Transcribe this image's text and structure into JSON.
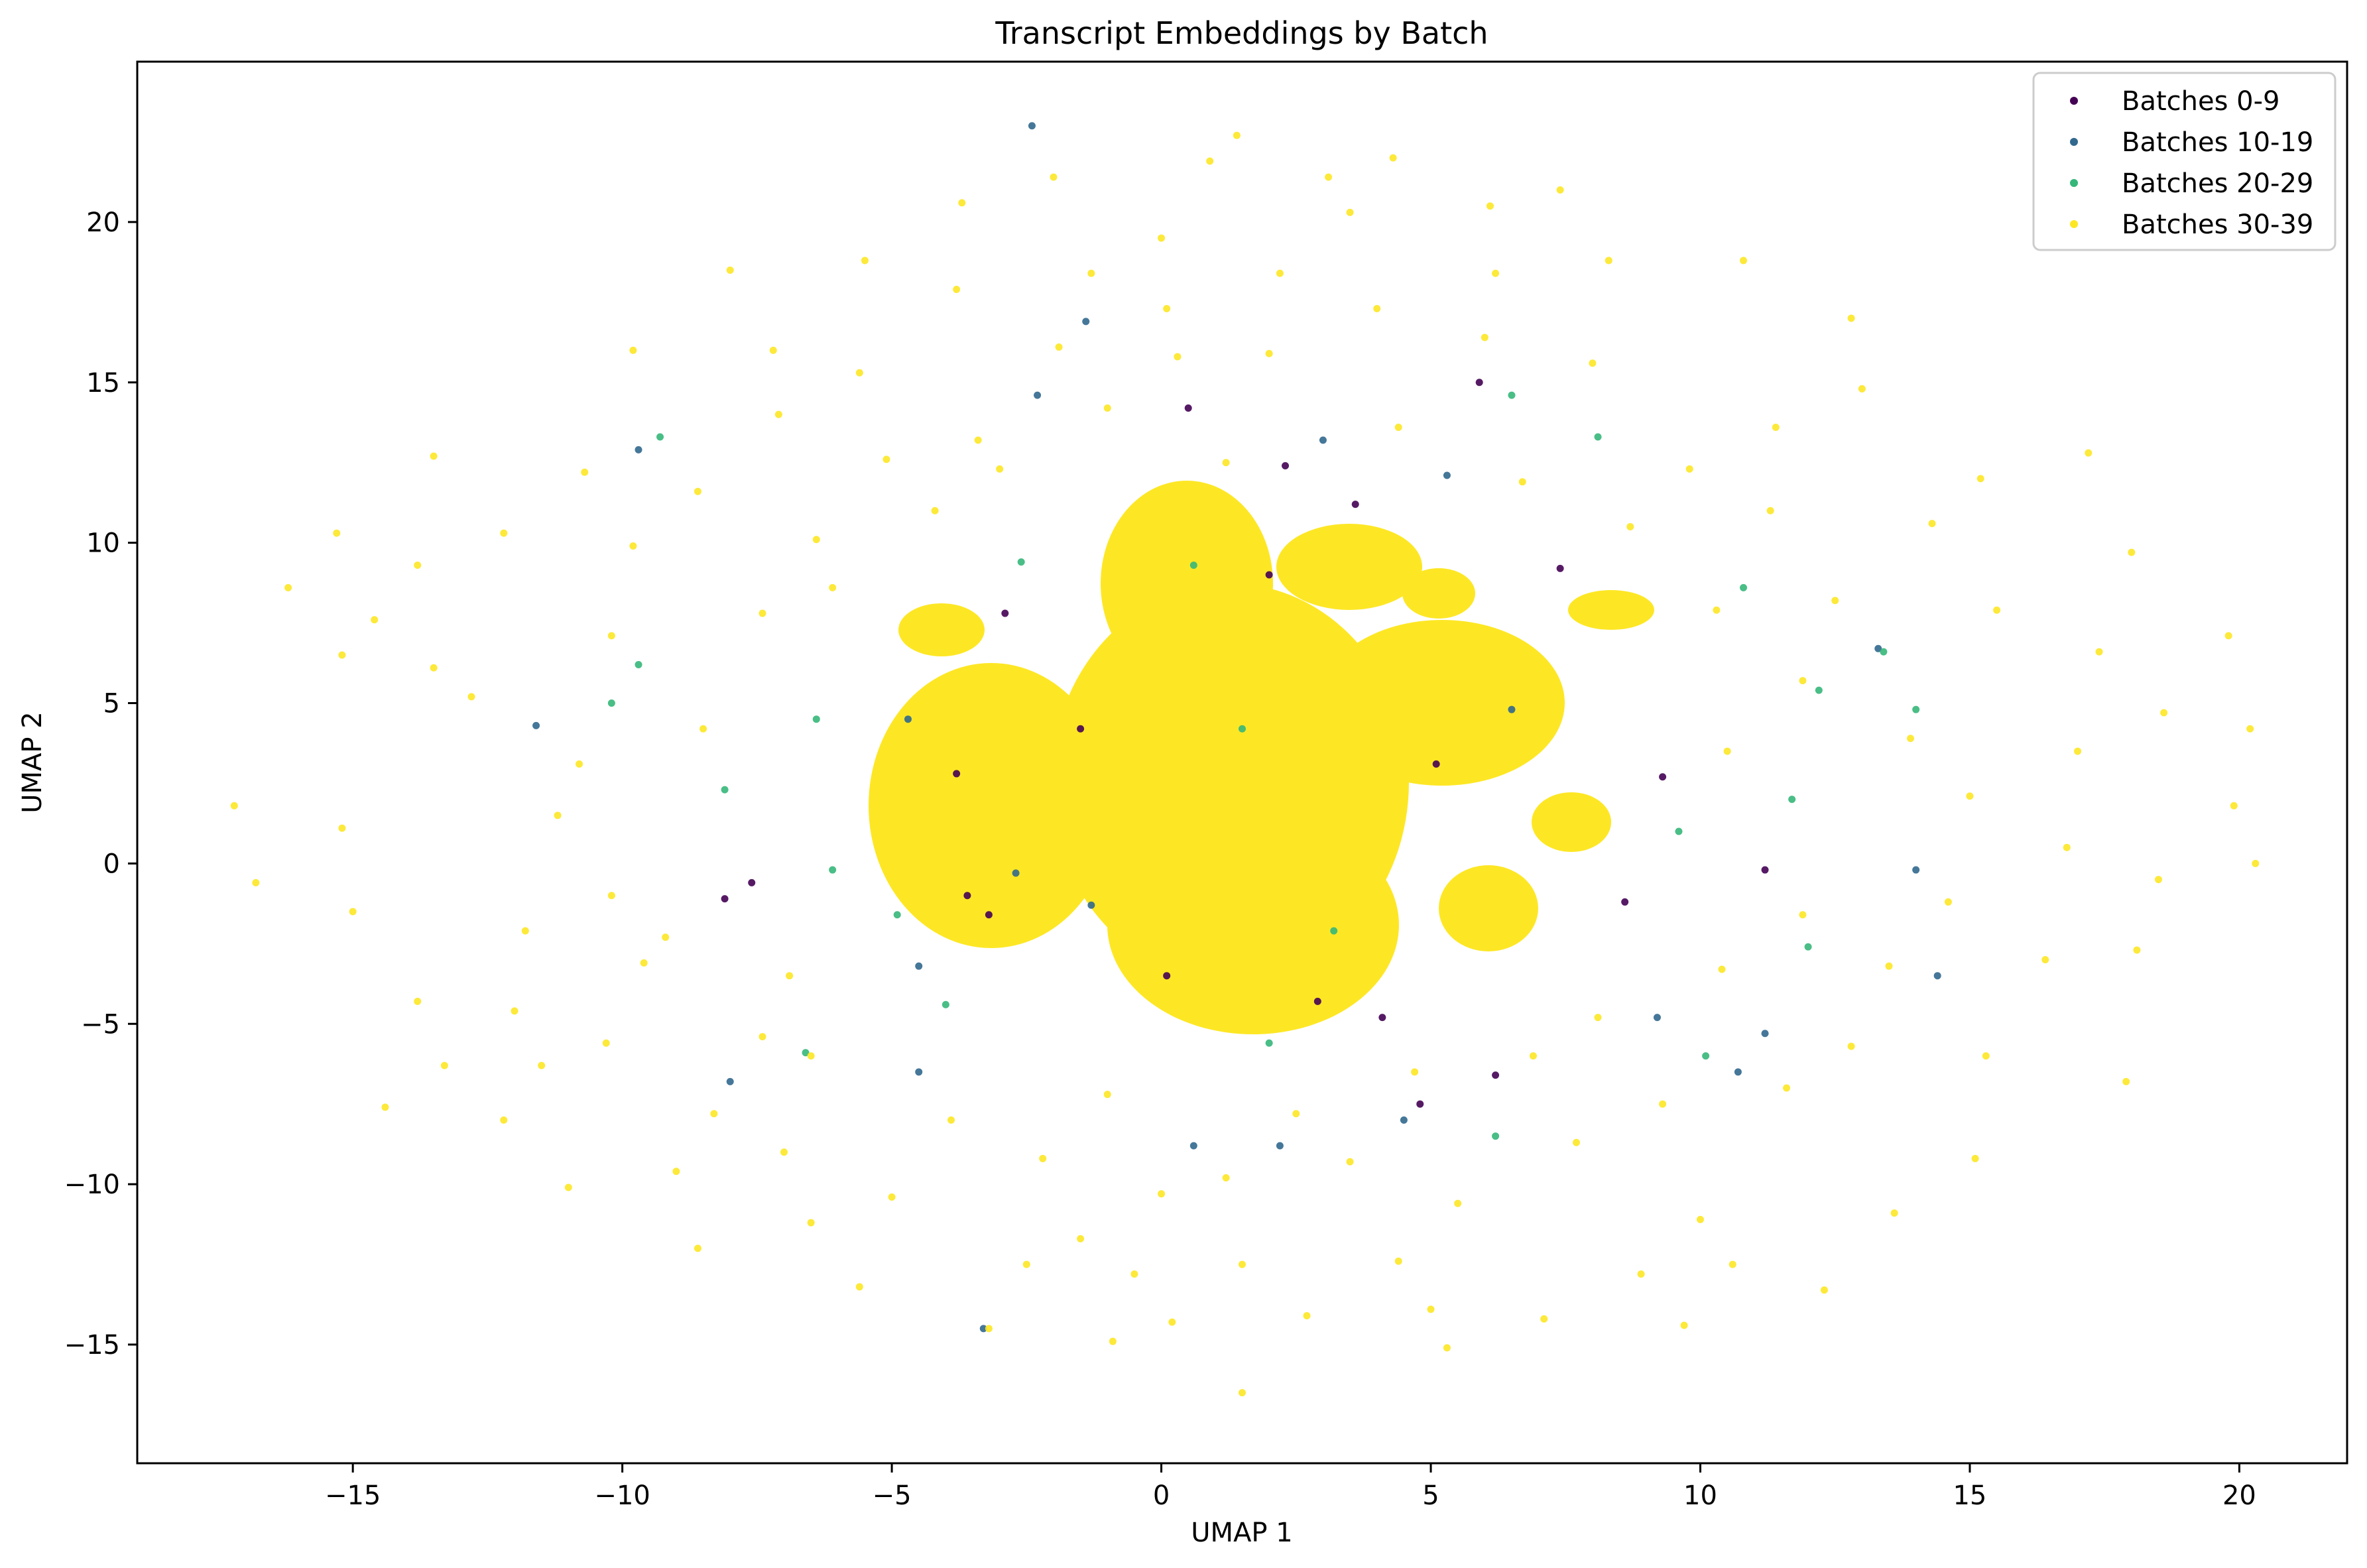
{
  "chart_data": {
    "type": "scatter",
    "title": "Transcript Embeddings by Batch",
    "xlabel": "UMAP 1",
    "ylabel": "UMAP 2",
    "xlim": [
      -19,
      22
    ],
    "ylim": [
      -18.7,
      25
    ],
    "xticks": [
      -15,
      -10,
      -5,
      0,
      5,
      10,
      15,
      20
    ],
    "yticks": [
      -15,
      -10,
      -5,
      0,
      5,
      10,
      15,
      20
    ],
    "xtick_labels": [
      "−15",
      "−10",
      "−5",
      "0",
      "5",
      "10",
      "15",
      "20"
    ],
    "ytick_labels": [
      "−15",
      "−10",
      "−5",
      "0",
      "5",
      "10",
      "15",
      "20"
    ],
    "grid": false,
    "legend_position": "top-right",
    "series": [
      {
        "name": "Batches 0-9",
        "color": "#440154",
        "points": [
          [
            0.5,
            14.2
          ],
          [
            5.9,
            15.0
          ],
          [
            2.3,
            12.4
          ],
          [
            3.6,
            11.2
          ],
          [
            -2.9,
            7.8
          ],
          [
            -3.8,
            2.8
          ],
          [
            -3.2,
            -1.6
          ],
          [
            0.1,
            -3.5
          ],
          [
            2.9,
            -4.3
          ],
          [
            4.1,
            -4.8
          ],
          [
            6.2,
            -6.6
          ],
          [
            8.6,
            -1.2
          ],
          [
            9.3,
            2.7
          ],
          [
            11.2,
            -0.2
          ],
          [
            -7.6,
            -0.6
          ],
          [
            -3.6,
            -1.0
          ],
          [
            -8.1,
            -1.1
          ],
          [
            4.8,
            -7.5
          ],
          [
            -1.5,
            4.2
          ],
          [
            2.0,
            9.0
          ],
          [
            7.4,
            9.2
          ],
          [
            5.1,
            3.1
          ]
        ]
      },
      {
        "name": "Batches 10-19",
        "color": "#31688e",
        "points": [
          [
            -2.4,
            23.0
          ],
          [
            -1.4,
            16.9
          ],
          [
            -2.3,
            14.6
          ],
          [
            3.0,
            13.2
          ],
          [
            5.3,
            12.1
          ],
          [
            -9.7,
            12.9
          ],
          [
            -11.6,
            4.3
          ],
          [
            -4.7,
            4.5
          ],
          [
            -1.3,
            -1.3
          ],
          [
            -4.5,
            -3.2
          ],
          [
            -4.5,
            -6.5
          ],
          [
            0.6,
            -8.8
          ],
          [
            2.2,
            -8.8
          ],
          [
            10.7,
            -6.5
          ],
          [
            11.2,
            -5.3
          ],
          [
            13.3,
            6.7
          ],
          [
            14.4,
            -3.5
          ],
          [
            14.0,
            -0.2
          ],
          [
            -8.0,
            -6.8
          ],
          [
            -3.3,
            -14.5
          ],
          [
            4.5,
            -8.0
          ],
          [
            9.2,
            -4.8
          ],
          [
            6.5,
            4.8
          ],
          [
            -2.7,
            -0.3
          ]
        ]
      },
      {
        "name": "Batches 20-29",
        "color": "#35b779",
        "points": [
          [
            -9.3,
            13.3
          ],
          [
            -9.7,
            6.2
          ],
          [
            -10.2,
            5.0
          ],
          [
            -8.1,
            2.3
          ],
          [
            -6.1,
            -0.2
          ],
          [
            -4.9,
            -1.6
          ],
          [
            -6.6,
            -5.9
          ],
          [
            2.0,
            -5.6
          ],
          [
            6.2,
            -8.5
          ],
          [
            10.1,
            -6.0
          ],
          [
            10.8,
            8.6
          ],
          [
            11.7,
            2.0
          ],
          [
            12.0,
            -2.6
          ],
          [
            13.4,
            6.6
          ],
          [
            14.0,
            4.8
          ],
          [
            -2.6,
            9.4
          ],
          [
            6.5,
            14.6
          ],
          [
            8.1,
            13.3
          ],
          [
            0.6,
            9.3
          ],
          [
            1.5,
            4.2
          ],
          [
            3.2,
            -2.1
          ],
          [
            -6.4,
            4.5
          ],
          [
            -4.0,
            -4.4
          ],
          [
            9.6,
            1.0
          ],
          [
            12.2,
            5.4
          ]
        ]
      },
      {
        "name": "Batches 30-39",
        "color": "#fde725",
        "points": [
          [
            -17.2,
            1.8
          ],
          [
            -16.8,
            -0.6
          ],
          [
            -16.2,
            8.6
          ],
          [
            -15.3,
            10.3
          ],
          [
            -15.2,
            6.5
          ],
          [
            -15.2,
            1.1
          ],
          [
            -15.0,
            -1.5
          ],
          [
            -14.6,
            7.6
          ],
          [
            -14.4,
            -7.6
          ],
          [
            -13.8,
            9.3
          ],
          [
            -13.5,
            12.7
          ],
          [
            -13.5,
            6.1
          ],
          [
            -13.8,
            -4.3
          ],
          [
            -13.3,
            -6.3
          ],
          [
            -12.8,
            5.2
          ],
          [
            -12.2,
            10.3
          ],
          [
            -12.2,
            -8.0
          ],
          [
            -11.8,
            -2.1
          ],
          [
            -11.5,
            -6.3
          ],
          [
            -11.0,
            -10.1
          ],
          [
            -10.7,
            12.2
          ],
          [
            -10.2,
            -1.0
          ],
          [
            -9.8,
            16.0
          ],
          [
            -9.6,
            -3.1
          ],
          [
            -9.0,
            -9.6
          ],
          [
            -8.6,
            -12.0
          ],
          [
            -8.0,
            18.5
          ],
          [
            -7.2,
            16.0
          ],
          [
            -7.0,
            -9.0
          ],
          [
            -6.5,
            -11.2
          ],
          [
            -5.5,
            18.8
          ],
          [
            -5.6,
            -13.2
          ],
          [
            -3.7,
            20.6
          ],
          [
            -3.2,
            -14.5
          ],
          [
            -2.5,
            -12.5
          ],
          [
            -2.0,
            21.4
          ],
          [
            -1.5,
            -11.7
          ],
          [
            -1.3,
            18.4
          ],
          [
            -0.9,
            -14.9
          ],
          [
            -0.5,
            -12.8
          ],
          [
            0.0,
            19.5
          ],
          [
            0.1,
            17.3
          ],
          [
            0.2,
            -14.3
          ],
          [
            0.9,
            21.9
          ],
          [
            1.4,
            22.7
          ],
          [
            1.5,
            -12.5
          ],
          [
            1.5,
            -16.5
          ],
          [
            2.2,
            18.4
          ],
          [
            2.7,
            -14.1
          ],
          [
            3.1,
            21.4
          ],
          [
            3.5,
            20.3
          ],
          [
            4.3,
            22.0
          ],
          [
            4.4,
            -12.4
          ],
          [
            5.0,
            -13.9
          ],
          [
            5.3,
            -15.1
          ],
          [
            6.1,
            20.5
          ],
          [
            6.2,
            18.4
          ],
          [
            7.4,
            21.0
          ],
          [
            7.1,
            -14.2
          ],
          [
            8.3,
            18.8
          ],
          [
            8.9,
            -12.8
          ],
          [
            9.7,
            -14.4
          ],
          [
            10.0,
            -11.1
          ],
          [
            10.6,
            -12.5
          ],
          [
            10.8,
            18.8
          ],
          [
            11.4,
            13.6
          ],
          [
            12.3,
            -13.3
          ],
          [
            12.8,
            17.0
          ],
          [
            13.0,
            14.8
          ],
          [
            13.6,
            -10.9
          ],
          [
            14.3,
            10.6
          ],
          [
            15.1,
            -9.2
          ],
          [
            15.2,
            12.0
          ],
          [
            15.3,
            -6.0
          ],
          [
            15.5,
            7.9
          ],
          [
            16.4,
            -3.0
          ],
          [
            16.8,
            0.5
          ],
          [
            17.0,
            3.5
          ],
          [
            17.2,
            12.8
          ],
          [
            17.4,
            6.6
          ],
          [
            17.9,
            -6.8
          ],
          [
            18.0,
            9.7
          ],
          [
            18.1,
            -2.7
          ],
          [
            18.5,
            -0.5
          ],
          [
            18.6,
            4.7
          ],
          [
            19.8,
            7.1
          ],
          [
            19.9,
            1.8
          ],
          [
            20.2,
            4.2
          ],
          [
            20.3,
            0.0
          ],
          [
            -4.2,
            11.0
          ],
          [
            -3.4,
            13.2
          ],
          [
            -6.1,
            8.6
          ],
          [
            -7.4,
            7.8
          ],
          [
            -8.5,
            4.2
          ],
          [
            -10.8,
            3.1
          ],
          [
            -11.2,
            1.5
          ],
          [
            -9.2,
            -2.3
          ],
          [
            -6.9,
            -3.5
          ],
          [
            -6.5,
            -6.0
          ],
          [
            -3.9,
            -8.0
          ],
          [
            -2.2,
            -9.2
          ],
          [
            0.0,
            -10.3
          ],
          [
            1.2,
            -9.8
          ],
          [
            3.5,
            -9.3
          ],
          [
            5.5,
            -10.6
          ],
          [
            7.7,
            -8.7
          ],
          [
            9.3,
            -7.5
          ],
          [
            11.6,
            -7.0
          ],
          [
            12.8,
            -5.7
          ],
          [
            13.5,
            -3.2
          ],
          [
            14.6,
            -1.2
          ],
          [
            15.0,
            2.1
          ],
          [
            13.9,
            3.9
          ],
          [
            12.5,
            8.2
          ],
          [
            11.3,
            11.0
          ],
          [
            9.8,
            12.3
          ],
          [
            8.0,
            15.6
          ],
          [
            6.0,
            16.4
          ],
          [
            4.0,
            17.3
          ],
          [
            2.0,
            15.9
          ],
          [
            0.3,
            15.8
          ],
          [
            -1.9,
            16.1
          ],
          [
            -3.8,
            17.9
          ],
          [
            -5.6,
            15.3
          ],
          [
            -7.1,
            14.0
          ],
          [
            -8.6,
            11.6
          ],
          [
            -9.8,
            9.9
          ],
          [
            -10.2,
            7.1
          ],
          [
            -12.0,
            -4.6
          ],
          [
            -10.3,
            -5.6
          ],
          [
            -8.3,
            -7.8
          ],
          [
            -7.4,
            -5.4
          ],
          [
            -5.0,
            -10.4
          ],
          [
            -1.0,
            -7.2
          ],
          [
            2.5,
            -7.8
          ],
          [
            4.7,
            -6.5
          ],
          [
            6.9,
            -6.0
          ],
          [
            8.1,
            -4.8
          ],
          [
            10.4,
            -3.3
          ],
          [
            11.9,
            -1.6
          ],
          [
            10.5,
            3.5
          ],
          [
            11.9,
            5.7
          ],
          [
            10.3,
            7.9
          ],
          [
            8.7,
            10.5
          ],
          [
            6.7,
            11.9
          ],
          [
            4.4,
            13.6
          ],
          [
            1.2,
            12.5
          ],
          [
            -1.0,
            14.2
          ],
          [
            -3.0,
            12.3
          ],
          [
            -5.1,
            12.6
          ],
          [
            -6.4,
            10.1
          ]
        ]
      }
    ]
  }
}
